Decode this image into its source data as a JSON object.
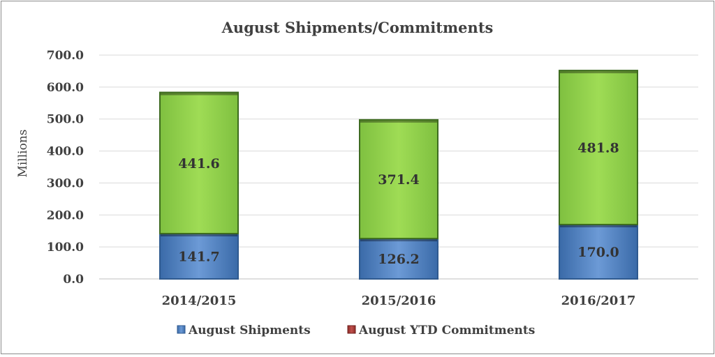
{
  "chart_data": {
    "type": "bar",
    "stacked": true,
    "title": "August Shipments/Commitments",
    "ylabel": "Millions",
    "xlabel": "",
    "categories": [
      "2014/2015",
      "2015/2016",
      "2016/2017"
    ],
    "ylim": [
      0,
      700
    ],
    "yticks": [
      "0.0",
      "100.0",
      "200.0",
      "300.0",
      "400.0",
      "500.0",
      "600.0",
      "700.0"
    ],
    "grid": true,
    "legend_position": "bottom",
    "series": [
      {
        "name": "August Shipments",
        "values": [
          141.7,
          126.2,
          170.0
        ],
        "labels": [
          "141.7",
          "126.2",
          "170.0"
        ],
        "color": "#4f81bd"
      },
      {
        "name": "August YTD Commitments",
        "values": [
          441.6,
          371.4,
          481.8
        ],
        "labels": [
          "441.6",
          "371.4",
          "481.8"
        ],
        "color": "#92d050",
        "legend_color": "#c0504d"
      }
    ]
  }
}
